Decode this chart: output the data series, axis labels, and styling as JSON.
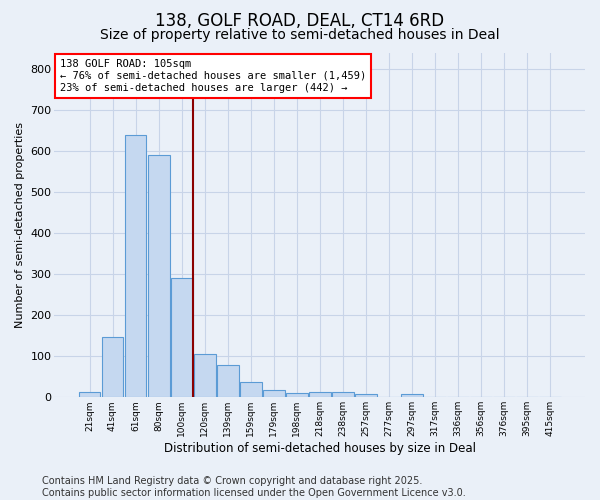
{
  "title": "138, GOLF ROAD, DEAL, CT14 6RD",
  "subtitle": "Size of property relative to semi-detached houses in Deal",
  "xlabel": "Distribution of semi-detached houses by size in Deal",
  "ylabel": "Number of semi-detached properties",
  "bins": [
    "21sqm",
    "41sqm",
    "61sqm",
    "80sqm",
    "100sqm",
    "120sqm",
    "139sqm",
    "159sqm",
    "179sqm",
    "198sqm",
    "218sqm",
    "238sqm",
    "257sqm",
    "277sqm",
    "297sqm",
    "317sqm",
    "336sqm",
    "356sqm",
    "376sqm",
    "395sqm",
    "415sqm"
  ],
  "values": [
    12,
    148,
    638,
    590,
    290,
    105,
    78,
    37,
    17,
    11,
    14,
    14,
    9,
    0,
    9,
    0,
    0,
    0,
    0,
    0,
    0
  ],
  "bar_color": "#c5d8f0",
  "bar_edge_color": "#5b9bd5",
  "vline_position": 4.5,
  "vline_color": "#8b0000",
  "annotation_line1": "138 GOLF ROAD: 105sqm",
  "annotation_line2": "← 76% of semi-detached houses are smaller (1,459)",
  "annotation_line3": "23% of semi-detached houses are larger (442) →",
  "annotation_box_color": "white",
  "annotation_box_edge_color": "red",
  "ylim": [
    0,
    840
  ],
  "yticks": [
    0,
    100,
    200,
    300,
    400,
    500,
    600,
    700,
    800
  ],
  "footer": "Contains HM Land Registry data © Crown copyright and database right 2025.\nContains public sector information licensed under the Open Government Licence v3.0.",
  "title_fontsize": 12,
  "subtitle_fontsize": 10,
  "footer_fontsize": 7,
  "bg_color": "#eaf0f8",
  "plot_bg_color": "#eaf0f8",
  "grid_color": "#c8d4e8"
}
